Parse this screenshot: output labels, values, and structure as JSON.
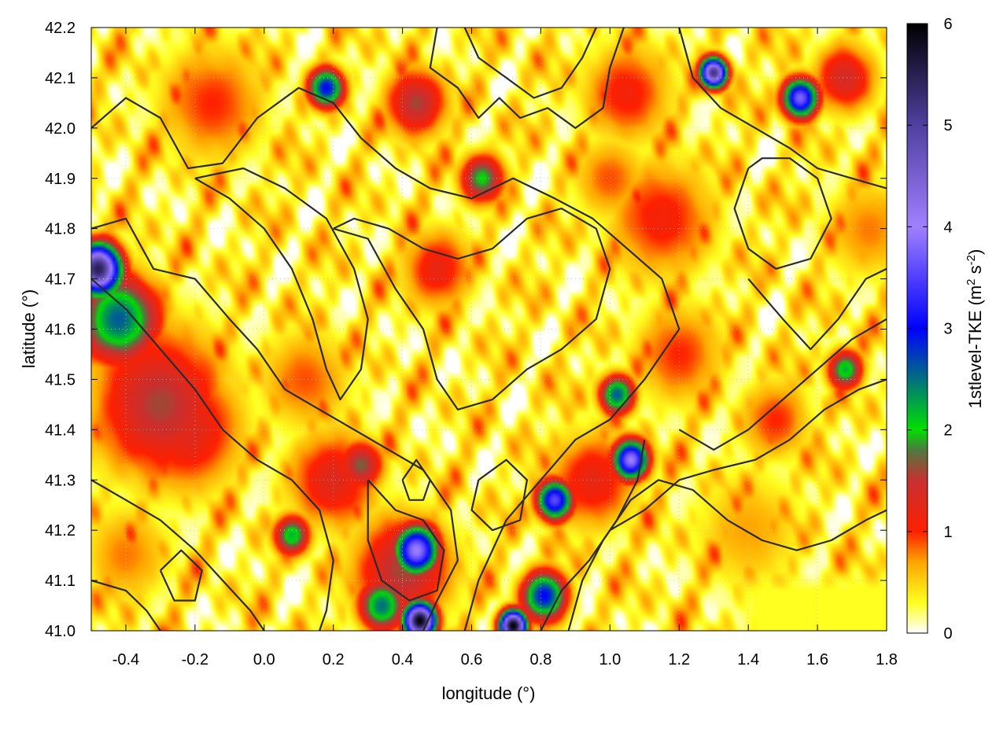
{
  "chart_data": {
    "type": "heatmap",
    "title": "",
    "xlabel": "longitude (°)",
    "ylabel": "latitude (°)",
    "xlim": [
      -0.5,
      1.8
    ],
    "ylim": [
      41.0,
      42.2
    ],
    "x_ticks": [
      "-0.4",
      "-0.2",
      "0.0",
      "0.2",
      "0.4",
      "0.6",
      "0.8",
      "1.0",
      "1.2",
      "1.4",
      "1.6",
      "1.8"
    ],
    "y_ticks": [
      "41.0",
      "41.1",
      "41.2",
      "41.3",
      "41.4",
      "41.5",
      "41.6",
      "41.7",
      "41.8",
      "41.9",
      "42.0",
      "42.1",
      "42.2"
    ],
    "colorbar": {
      "label_main": "1stlevel-TKE (m",
      "label_sup1": "2",
      "label_mid": " s",
      "label_sup2": "-2",
      "label_end": ")",
      "range": [
        0,
        6
      ],
      "ticks": [
        "0",
        "1",
        "2",
        "3",
        "4",
        "5",
        "6"
      ],
      "stops": [
        {
          "value": 0.0,
          "color": "#ffffff"
        },
        {
          "value": 0.3,
          "color": "#ffff20"
        },
        {
          "value": 0.7,
          "color": "#ffa500"
        },
        {
          "value": 1.0,
          "color": "#ff2000"
        },
        {
          "value": 1.5,
          "color": "#c83030"
        },
        {
          "value": 1.8,
          "color": "#507840"
        },
        {
          "value": 2.0,
          "color": "#00e000"
        },
        {
          "value": 3.0,
          "color": "#0000ff"
        },
        {
          "value": 4.0,
          "color": "#a080ff"
        },
        {
          "value": 5.0,
          "color": "#5040a0"
        },
        {
          "value": 6.0,
          "color": "#000000"
        }
      ]
    },
    "grid": true,
    "legend": "none",
    "hotspots": [
      {
        "lon": -0.42,
        "lat": 41.62,
        "tke": 2.6,
        "r": 0.09
      },
      {
        "lon": -0.48,
        "lat": 41.72,
        "tke": 5.5,
        "r": 0.05
      },
      {
        "lon": -0.3,
        "lat": 41.45,
        "tke": 1.6,
        "r": 0.15
      },
      {
        "lon": -0.22,
        "lat": 41.4,
        "tke": 1.3,
        "r": 0.12
      },
      {
        "lon": 0.2,
        "lat": 41.3,
        "tke": 1.3,
        "r": 0.1
      },
      {
        "lon": 0.28,
        "lat": 41.33,
        "tke": 1.7,
        "r": 0.05
      },
      {
        "lon": 0.44,
        "lat": 41.16,
        "tke": 4.0,
        "r": 0.05
      },
      {
        "lon": 0.4,
        "lat": 41.12,
        "tke": 1.6,
        "r": 0.11
      },
      {
        "lon": 0.45,
        "lat": 41.02,
        "tke": 6.0,
        "r": 0.035
      },
      {
        "lon": 0.34,
        "lat": 41.05,
        "tke": 2.5,
        "r": 0.05
      },
      {
        "lon": 0.08,
        "lat": 41.19,
        "tke": 2.2,
        "r": 0.04
      },
      {
        "lon": 0.72,
        "lat": 41.01,
        "tke": 6.0,
        "r": 0.03
      },
      {
        "lon": 0.81,
        "lat": 41.07,
        "tke": 3.0,
        "r": 0.05
      },
      {
        "lon": 0.84,
        "lat": 41.26,
        "tke": 3.6,
        "r": 0.04
      },
      {
        "lon": 1.06,
        "lat": 41.34,
        "tke": 4.0,
        "r": 0.04
      },
      {
        "lon": 1.02,
        "lat": 41.47,
        "tke": 2.6,
        "r": 0.04
      },
      {
        "lon": 0.95,
        "lat": 41.3,
        "tke": 1.2,
        "r": 0.1
      },
      {
        "lon": 0.5,
        "lat": 41.72,
        "tke": 1.2,
        "r": 0.08
      },
      {
        "lon": 1.15,
        "lat": 41.82,
        "tke": 1.1,
        "r": 0.12
      },
      {
        "lon": 1.3,
        "lat": 42.11,
        "tke": 5.2,
        "r": 0.03
      },
      {
        "lon": 1.55,
        "lat": 42.06,
        "tke": 3.8,
        "r": 0.04
      },
      {
        "lon": 0.18,
        "lat": 42.08,
        "tke": 3.0,
        "r": 0.04
      },
      {
        "lon": 0.63,
        "lat": 41.9,
        "tke": 2.0,
        "r": 0.05
      },
      {
        "lon": 0.44,
        "lat": 42.05,
        "tke": 1.6,
        "r": 0.07
      },
      {
        "lon": 1.05,
        "lat": 42.07,
        "tke": 1.1,
        "r": 0.1
      },
      {
        "lon": 1.68,
        "lat": 42.1,
        "tke": 1.4,
        "r": 0.07
      },
      {
        "lon": -0.15,
        "lat": 42.05,
        "tke": 1.0,
        "r": 0.12
      },
      {
        "lon": 1.68,
        "lat": 41.52,
        "tke": 2.2,
        "r": 0.04
      },
      {
        "lon": 1.48,
        "lat": 41.42,
        "tke": 1.0,
        "r": 0.08
      },
      {
        "lon": 1.2,
        "lat": 41.55,
        "tke": 1.0,
        "r": 0.1
      },
      {
        "lon": 0.12,
        "lat": 41.5,
        "tke": 0.9,
        "r": 0.1
      },
      {
        "lon": -0.4,
        "lat": 41.15,
        "tke": 0.8,
        "r": 0.1
      },
      {
        "lon": 1.4,
        "lat": 41.2,
        "tke": 0.7,
        "r": 0.12
      },
      {
        "lon": 1.0,
        "lat": 41.9,
        "tke": 0.9,
        "r": 0.08
      },
      {
        "lon": 1.75,
        "lat": 41.8,
        "tke": 0.8,
        "r": 0.1
      }
    ],
    "pale_region": {
      "lon_min": 1.35,
      "lon_max": 1.8,
      "lat_min": 41.0,
      "lat_max": 41.12,
      "tke": 0.3
    },
    "contours": [
      [
        [
          0.5,
          42.2
        ],
        [
          0.48,
          42.12
        ],
        [
          0.56,
          42.08
        ],
        [
          0.62,
          42.02
        ],
        [
          0.68,
          42.06
        ],
        [
          0.74,
          42.02
        ],
        [
          0.82,
          42.04
        ],
        [
          0.9,
          42.0
        ],
        [
          0.98,
          42.04
        ],
        [
          1.0,
          42.12
        ],
        [
          1.04,
          42.2
        ]
      ],
      [
        [
          0.58,
          42.2
        ],
        [
          0.62,
          42.14
        ],
        [
          0.7,
          42.1
        ],
        [
          0.78,
          42.06
        ],
        [
          0.86,
          42.08
        ],
        [
          0.92,
          42.14
        ],
        [
          0.96,
          42.2
        ]
      ],
      [
        [
          -0.5,
          42.0
        ],
        [
          -0.4,
          42.06
        ],
        [
          -0.3,
          42.02
        ],
        [
          -0.22,
          41.92
        ],
        [
          -0.12,
          41.93
        ],
        [
          -0.02,
          42.02
        ],
        [
          0.1,
          42.08
        ],
        [
          0.2,
          42.05
        ],
        [
          0.28,
          41.98
        ],
        [
          0.38,
          41.92
        ],
        [
          0.48,
          41.88
        ],
        [
          0.6,
          41.86
        ],
        [
          0.72,
          41.9
        ],
        [
          0.84,
          41.86
        ],
        [
          0.95,
          41.82
        ],
        [
          1.05,
          41.76
        ],
        [
          1.15,
          41.7
        ],
        [
          1.2,
          41.6
        ],
        [
          1.1,
          41.5
        ],
        [
          1.0,
          41.42
        ],
        [
          0.9,
          41.38
        ],
        [
          0.8,
          41.3
        ],
        [
          0.7,
          41.22
        ],
        [
          0.62,
          41.1
        ],
        [
          0.58,
          41.0
        ]
      ],
      [
        [
          -0.5,
          41.8
        ],
        [
          -0.4,
          41.82
        ],
        [
          -0.32,
          41.72
        ],
        [
          -0.2,
          41.7
        ],
        [
          -0.1,
          41.62
        ],
        [
          -0.02,
          41.56
        ],
        [
          0.06,
          41.48
        ],
        [
          0.16,
          41.44
        ],
        [
          0.26,
          41.4
        ],
        [
          0.36,
          41.36
        ],
        [
          0.46,
          41.32
        ],
        [
          0.54,
          41.24
        ],
        [
          0.56,
          41.14
        ],
        [
          0.5,
          41.06
        ],
        [
          0.46,
          41.0
        ]
      ],
      [
        [
          -0.5,
          41.7
        ],
        [
          -0.4,
          41.64
        ],
        [
          -0.3,
          41.56
        ],
        [
          -0.2,
          41.48
        ],
        [
          -0.12,
          41.4
        ],
        [
          -0.02,
          41.34
        ],
        [
          0.08,
          41.3
        ],
        [
          0.16,
          41.24
        ],
        [
          0.2,
          41.14
        ],
        [
          0.18,
          41.04
        ],
        [
          0.16,
          41.0
        ]
      ],
      [
        [
          -0.5,
          41.3
        ],
        [
          -0.4,
          41.26
        ],
        [
          -0.3,
          41.22
        ],
        [
          -0.2,
          41.16
        ],
        [
          -0.12,
          41.1
        ],
        [
          -0.04,
          41.04
        ],
        [
          0.0,
          41.0
        ]
      ],
      [
        [
          -0.5,
          41.1
        ],
        [
          -0.4,
          41.08
        ],
        [
          -0.34,
          41.04
        ],
        [
          -0.3,
          41.0
        ]
      ],
      [
        [
          0.2,
          41.8
        ],
        [
          0.3,
          41.78
        ],
        [
          0.38,
          41.68
        ],
        [
          0.46,
          41.6
        ],
        [
          0.5,
          41.5
        ],
        [
          0.56,
          41.44
        ],
        [
          0.66,
          41.46
        ],
        [
          0.76,
          41.52
        ],
        [
          0.86,
          41.56
        ],
        [
          0.96,
          41.62
        ],
        [
          1.0,
          41.72
        ],
        [
          0.96,
          41.8
        ],
        [
          0.86,
          41.84
        ],
        [
          0.76,
          41.82
        ],
        [
          0.66,
          41.76
        ],
        [
          0.56,
          41.74
        ],
        [
          0.46,
          41.76
        ],
        [
          0.36,
          41.8
        ],
        [
          0.26,
          41.82
        ],
        [
          0.2,
          41.8
        ]
      ],
      [
        [
          -0.2,
          41.9
        ],
        [
          -0.1,
          41.86
        ],
        [
          0.0,
          41.8
        ],
        [
          0.08,
          41.72
        ],
        [
          0.14,
          41.62
        ],
        [
          0.18,
          41.52
        ],
        [
          0.22,
          41.46
        ],
        [
          0.28,
          41.52
        ],
        [
          0.3,
          41.62
        ],
        [
          0.26,
          41.72
        ],
        [
          0.18,
          41.82
        ],
        [
          0.06,
          41.88
        ],
        [
          -0.06,
          41.92
        ],
        [
          -0.2,
          41.9
        ]
      ],
      [
        [
          1.2,
          41.4
        ],
        [
          1.3,
          41.36
        ],
        [
          1.4,
          41.4
        ],
        [
          1.5,
          41.46
        ],
        [
          1.6,
          41.52
        ],
        [
          1.7,
          41.58
        ],
        [
          1.8,
          41.62
        ]
      ],
      [
        [
          1.0,
          41.2
        ],
        [
          1.1,
          41.24
        ],
        [
          1.2,
          41.3
        ],
        [
          1.3,
          41.32
        ],
        [
          1.42,
          41.34
        ],
        [
          1.52,
          41.38
        ],
        [
          1.62,
          41.44
        ],
        [
          1.72,
          41.48
        ],
        [
          1.8,
          41.5
        ]
      ],
      [
        [
          0.88,
          41.0
        ],
        [
          0.92,
          41.1
        ],
        [
          0.98,
          41.18
        ],
        [
          1.06,
          41.26
        ],
        [
          1.14,
          41.3
        ],
        [
          1.24,
          41.28
        ],
        [
          1.34,
          41.22
        ],
        [
          1.44,
          41.18
        ],
        [
          1.54,
          41.16
        ],
        [
          1.64,
          41.18
        ],
        [
          1.74,
          41.22
        ],
        [
          1.8,
          41.24
        ]
      ],
      [
        [
          0.8,
          41.0
        ],
        [
          0.86,
          41.08
        ],
        [
          0.94,
          41.14
        ],
        [
          1.02,
          41.22
        ],
        [
          1.08,
          41.3
        ],
        [
          1.1,
          41.38
        ]
      ],
      [
        [
          1.4,
          41.7
        ],
        [
          1.5,
          41.62
        ],
        [
          1.58,
          41.56
        ],
        [
          1.66,
          41.62
        ],
        [
          1.74,
          41.7
        ],
        [
          1.8,
          41.72
        ]
      ],
      [
        [
          1.2,
          42.2
        ],
        [
          1.24,
          42.1
        ],
        [
          1.32,
          42.04
        ],
        [
          1.42,
          42.0
        ],
        [
          1.52,
          41.96
        ],
        [
          1.6,
          41.92
        ],
        [
          1.7,
          41.9
        ],
        [
          1.8,
          41.88
        ]
      ],
      [
        [
          1.4,
          41.92
        ],
        [
          1.36,
          41.84
        ],
        [
          1.4,
          41.76
        ],
        [
          1.48,
          41.72
        ],
        [
          1.58,
          41.74
        ],
        [
          1.64,
          41.82
        ],
        [
          1.6,
          41.9
        ],
        [
          1.52,
          41.94
        ],
        [
          1.44,
          41.94
        ],
        [
          1.4,
          41.92
        ]
      ],
      [
        [
          0.3,
          41.3
        ],
        [
          0.38,
          41.24
        ],
        [
          0.46,
          41.22
        ],
        [
          0.52,
          41.16
        ],
        [
          0.5,
          41.08
        ],
        [
          0.42,
          41.06
        ],
        [
          0.34,
          41.1
        ],
        [
          0.3,
          41.18
        ],
        [
          0.3,
          41.3
        ]
      ],
      [
        [
          0.62,
          41.3
        ],
        [
          0.7,
          41.34
        ],
        [
          0.76,
          41.3
        ],
        [
          0.74,
          41.22
        ],
        [
          0.66,
          41.2
        ],
        [
          0.6,
          41.24
        ],
        [
          0.62,
          41.3
        ]
      ],
      [
        [
          -0.3,
          41.12
        ],
        [
          -0.24,
          41.16
        ],
        [
          -0.18,
          41.12
        ],
        [
          -0.2,
          41.06
        ],
        [
          -0.26,
          41.06
        ],
        [
          -0.3,
          41.12
        ]
      ],
      [
        [
          0.4,
          41.3
        ],
        [
          0.44,
          41.34
        ],
        [
          0.48,
          41.3
        ],
        [
          0.46,
          41.26
        ],
        [
          0.42,
          41.26
        ],
        [
          0.4,
          41.3
        ]
      ]
    ]
  }
}
